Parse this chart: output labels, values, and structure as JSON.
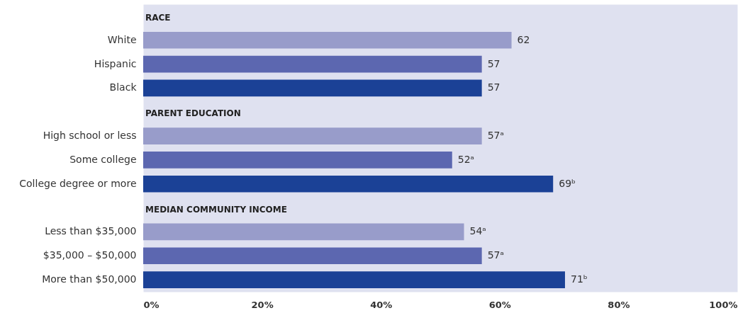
{
  "chart_data": {
    "type": "bar",
    "orientation": "horizontal",
    "categories": [
      "RACE",
      "White",
      "Hispanic",
      "Black",
      "PARENT EDUCATION",
      "High school or less",
      "Some college",
      "College degree or more",
      "MEDIAN COMMUNITY INCOME",
      "Less than $35,000",
      "$35,000 – $50,000",
      "More than $50,000"
    ],
    "values": [
      null,
      62,
      57,
      57,
      null,
      57,
      52,
      69,
      null,
      54,
      57,
      71
    ],
    "value_labels": [
      null,
      "62",
      "57",
      "57",
      null,
      "57ᵃ",
      "52ᵃ",
      "69ᵇ",
      null,
      "54ᵃ",
      "57ᵃ",
      "71ᵇ"
    ],
    "colors": [
      null,
      "#989cca",
      "#5c67b0",
      "#1b4196",
      null,
      "#989cca",
      "#5c67b0",
      "#1b4196",
      null,
      "#989cca",
      "#5c67b0",
      "#1b4196"
    ],
    "xlim": [
      0,
      100
    ],
    "xticks": [
      {
        "value": 0,
        "label": "0%"
      },
      {
        "value": 20,
        "label": "20%"
      },
      {
        "value": 40,
        "label": "40%"
      },
      {
        "value": 60,
        "label": "60%"
      },
      {
        "value": 80,
        "label": "80%"
      },
      {
        "value": 100,
        "label": "100%"
      }
    ],
    "grid": false
  }
}
